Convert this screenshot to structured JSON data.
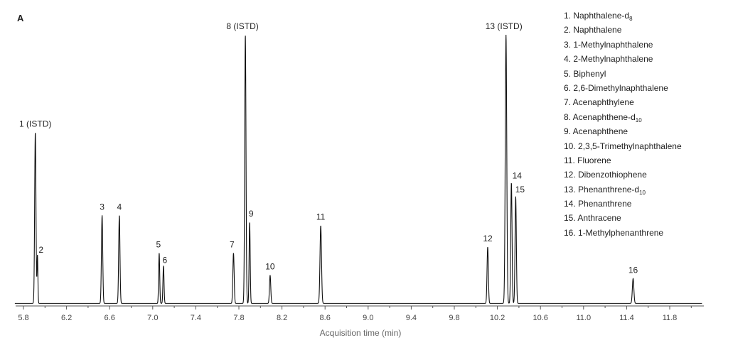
{
  "chart_data": {
    "type": "line",
    "panel_label": "A",
    "xlabel": "Acquisition time (min)",
    "ylabel": "",
    "xlim": [
      5.72,
      12.3
    ],
    "ylim": [
      0,
      100
    ],
    "x_ticks": [
      "5.8",
      "6.2",
      "6.6",
      "7.0",
      "7.4",
      "7.8",
      "8.2",
      "8.6",
      "9.0",
      "9.4",
      "9.8",
      "10.2",
      "10.6",
      "11.0",
      "11.4",
      "11.8"
    ],
    "baseline": 1.5,
    "peaks": [
      {
        "label": "1 (ISTD)",
        "rt": 5.91,
        "height": 100.0,
        "width": 0.006
      },
      {
        "label": "2",
        "rt": 5.93,
        "height": 28.0,
        "width": 0.004
      },
      {
        "label": "3",
        "rt": 6.53,
        "height": 51.5,
        "width": 0.006
      },
      {
        "label": "4",
        "rt": 6.69,
        "height": 51.5,
        "width": 0.006
      },
      {
        "label": "5",
        "rt": 7.06,
        "height": 29.5,
        "width": 0.005
      },
      {
        "label": "6",
        "rt": 7.1,
        "height": 22.0,
        "width": 0.005
      },
      {
        "label": "7",
        "rt": 7.75,
        "height": 29.5,
        "width": 0.006
      },
      {
        "label": "8 (ISTD)",
        "rt": 7.86,
        "height": 157.0,
        "width": 0.006
      },
      {
        "label": "9",
        "rt": 7.9,
        "height": 47.5,
        "width": 0.005
      },
      {
        "label": "10",
        "rt": 8.09,
        "height": 16.5,
        "width": 0.006
      },
      {
        "label": "11",
        "rt": 8.56,
        "height": 45.5,
        "width": 0.007
      },
      {
        "label": "12",
        "rt": 10.11,
        "height": 33.0,
        "width": 0.006
      },
      {
        "label": "13 (ISTD)",
        "rt": 10.28,
        "height": 157.0,
        "width": 0.007
      },
      {
        "label": "14",
        "rt": 10.33,
        "height": 70.5,
        "width": 0.006
      },
      {
        "label": "15",
        "rt": 10.37,
        "height": 62.5,
        "width": 0.006
      },
      {
        "label": "16",
        "rt": 11.46,
        "height": 14.5,
        "width": 0.007
      }
    ],
    "legend": [
      {
        "text": "1. Naphthalene-d",
        "sub": "8"
      },
      {
        "text": "2. Naphthalene",
        "sub": ""
      },
      {
        "text": "3. 1-Methylnaphthalene",
        "sub": ""
      },
      {
        "text": "4. 2-Methylnaphthalene",
        "sub": ""
      },
      {
        "text": "5. Biphenyl",
        "sub": ""
      },
      {
        "text": "6. 2,6-Dimethylnaphthalene",
        "sub": ""
      },
      {
        "text": "7. Acenaphthylene",
        "sub": ""
      },
      {
        "text": "8.  Acenaphthene-d",
        "sub": "10"
      },
      {
        "text": "9. Acenaphthene",
        "sub": ""
      },
      {
        "text": "10. 2,3,5-Trimethylnaphthalene",
        "sub": ""
      },
      {
        "text": "11. Fluorene",
        "sub": ""
      },
      {
        "text": "12. Dibenzothiophene",
        "sub": ""
      },
      {
        "text": "13. Phenanthrene-d",
        "sub": "10"
      },
      {
        "text": "14. Phenanthrene",
        "sub": ""
      },
      {
        "text": "15. Anthracene",
        "sub": ""
      },
      {
        "text": "16. 1-Methylphenanthrene",
        "sub": ""
      }
    ],
    "line_color": "#111111",
    "axis_color": "#555555"
  }
}
